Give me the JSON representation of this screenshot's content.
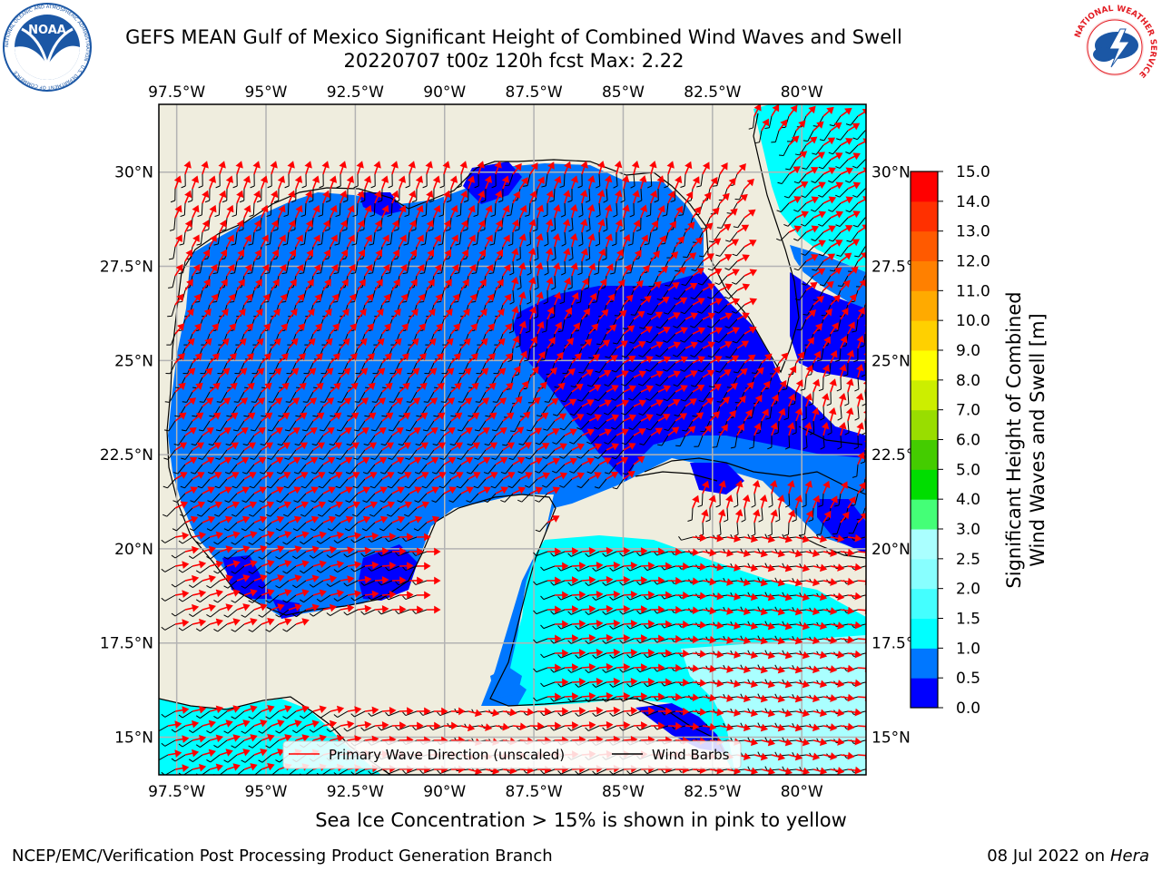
{
  "header": {
    "title_line1": "GEFS MEAN Gulf of Mexico Significant Height of Combined Wind Waves and Swell",
    "title_line2": "20220707 t00z 120h fcst   Max: 2.22"
  },
  "logos": {
    "noaa": {
      "text": "NOAA",
      "ring_text": "NATIONAL OCEANIC AND ATMOSPHERIC ADMINISTRATION · U.S. DEPARTMENT OF COMMERCE",
      "color": "#1b57a5"
    },
    "nws": {
      "ring_text": "NATIONAL WEATHER SERVICE",
      "color": "#e31d24"
    }
  },
  "footer": {
    "ice_note": "Sea Ice Concentration > 15% is shown in pink to yellow",
    "credit": "NCEP/EMC/Verification Post Processing Product Generation Branch",
    "date": "08 Jul 2022 on",
    "host": "Hera"
  },
  "chart_data": {
    "type": "heatmap",
    "projection": "PlateCarree",
    "xlim": [
      -98.0,
      -78.2
    ],
    "ylim": [
      14.0,
      31.8
    ],
    "x_ticks": [
      -97.5,
      -95,
      -92.5,
      -90,
      -87.5,
      -85,
      -82.5,
      -80
    ],
    "x_tick_labels": [
      "97.5°W",
      "95°W",
      "92.5°W",
      "90°W",
      "87.5°W",
      "85°W",
      "82.5°W",
      "80°W"
    ],
    "y_ticks": [
      15,
      17.5,
      20,
      22.5,
      25,
      27.5,
      30
    ],
    "y_tick_labels": [
      "15°N",
      "17.5°N",
      "20°N",
      "22.5°N",
      "25°N",
      "27.5°N",
      "30°N"
    ],
    "grid": true,
    "land_color": "#efedde",
    "colorbar": {
      "label": "Significant Height of Combined Wind Waves and Swell [m]",
      "label_line1": "Significant Height of Combined",
      "label_line2": "Wind Waves and Swell [m]",
      "levels": [
        0.0,
        0.5,
        1.0,
        1.5,
        2.0,
        2.5,
        3.0,
        4.0,
        5.0,
        6.0,
        7.0,
        8.0,
        9.0,
        10.0,
        11.0,
        12.0,
        13.0,
        14.0,
        15.0
      ],
      "tick_labels": [
        "0.0",
        "0.5",
        "1.0",
        "1.5",
        "2.0",
        "2.5",
        "3.0",
        "4.0",
        "5.0",
        "6.0",
        "7.0",
        "8.0",
        "9.0",
        "10.0",
        "11.0",
        "12.0",
        "13.0",
        "14.0",
        "15.0"
      ],
      "colors": [
        "#0000ff",
        "#0077ff",
        "#00ffff",
        "#44ffff",
        "#88ffff",
        "#aaffff",
        "#44ff77",
        "#00dd00",
        "#44cc00",
        "#99dd00",
        "#ccee00",
        "#ffff00",
        "#ffd000",
        "#ffaa00",
        "#ff8000",
        "#ff5a00",
        "#ff3000",
        "#ff0000"
      ]
    },
    "max_value": 2.22,
    "regions": [
      {
        "name": "open-gulf-west",
        "value_range": [
          0.5,
          1.0
        ]
      },
      {
        "name": "eastern-gulf",
        "value_range": [
          0.0,
          0.5
        ]
      },
      {
        "name": "caribbean",
        "value_range": [
          1.0,
          2.0
        ]
      },
      {
        "name": "atlantic-east-florida",
        "value_range": [
          1.0,
          2.0
        ]
      },
      {
        "name": "pacific-southwest",
        "value_range": [
          1.0,
          2.0
        ]
      }
    ],
    "legend": {
      "placement": "lower-center",
      "items": [
        {
          "label": "Primary Wave Direction (unscaled)",
          "color": "#ff0000"
        },
        {
          "label": "Wind Barbs",
          "color": "#000000"
        }
      ]
    }
  }
}
